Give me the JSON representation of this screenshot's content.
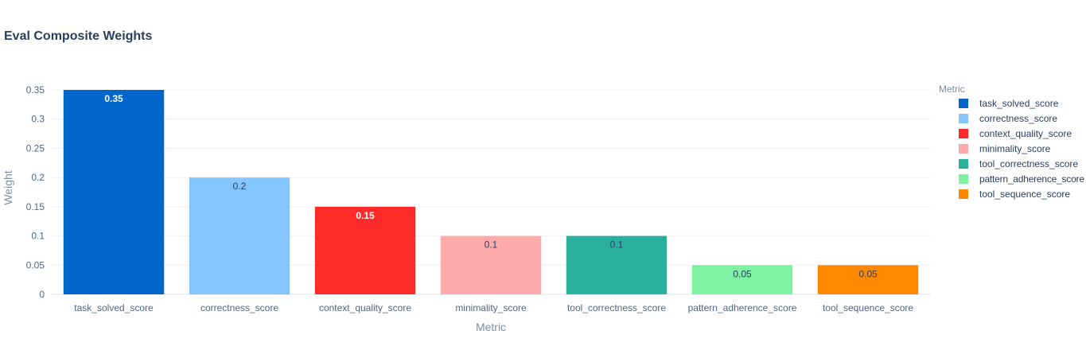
{
  "chart_data": {
    "type": "bar",
    "title": "Eval Composite Weights",
    "xlabel": "Metric",
    "ylabel": "Weight",
    "ylim": [
      0,
      0.35
    ],
    "yticks": [
      0,
      0.05,
      0.1,
      0.15,
      0.2,
      0.25,
      0.3,
      0.35
    ],
    "ytick_labels": [
      "0",
      "0.05",
      "0.1",
      "0.15",
      "0.2",
      "0.25",
      "0.3",
      "0.35"
    ],
    "grid": true,
    "legend": {
      "title": "Metric",
      "placement": "right"
    },
    "categories": [
      "task_solved_score",
      "correctness_score",
      "context_quality_score",
      "minimality_score",
      "tool_correctness_score",
      "pattern_adherence_score",
      "tool_sequence_score"
    ],
    "values": [
      0.35,
      0.2,
      0.15,
      0.1,
      0.1,
      0.05,
      0.05
    ],
    "value_labels": [
      "0.35",
      "0.2",
      "0.15",
      "0.1",
      "0.1",
      "0.05",
      "0.05"
    ],
    "colors": [
      "#0066cc",
      "#85c5ff",
      "#ff2a2a",
      "#ffaaaa",
      "#2ab09c",
      "#7ff2a2",
      "#ff8800"
    ],
    "label_colors": [
      "#ffffff",
      "#2a3f5f",
      "#ffffff",
      "#2a3f5f",
      "#2a3f5f",
      "#2a3f5f",
      "#2a3f5f"
    ]
  }
}
